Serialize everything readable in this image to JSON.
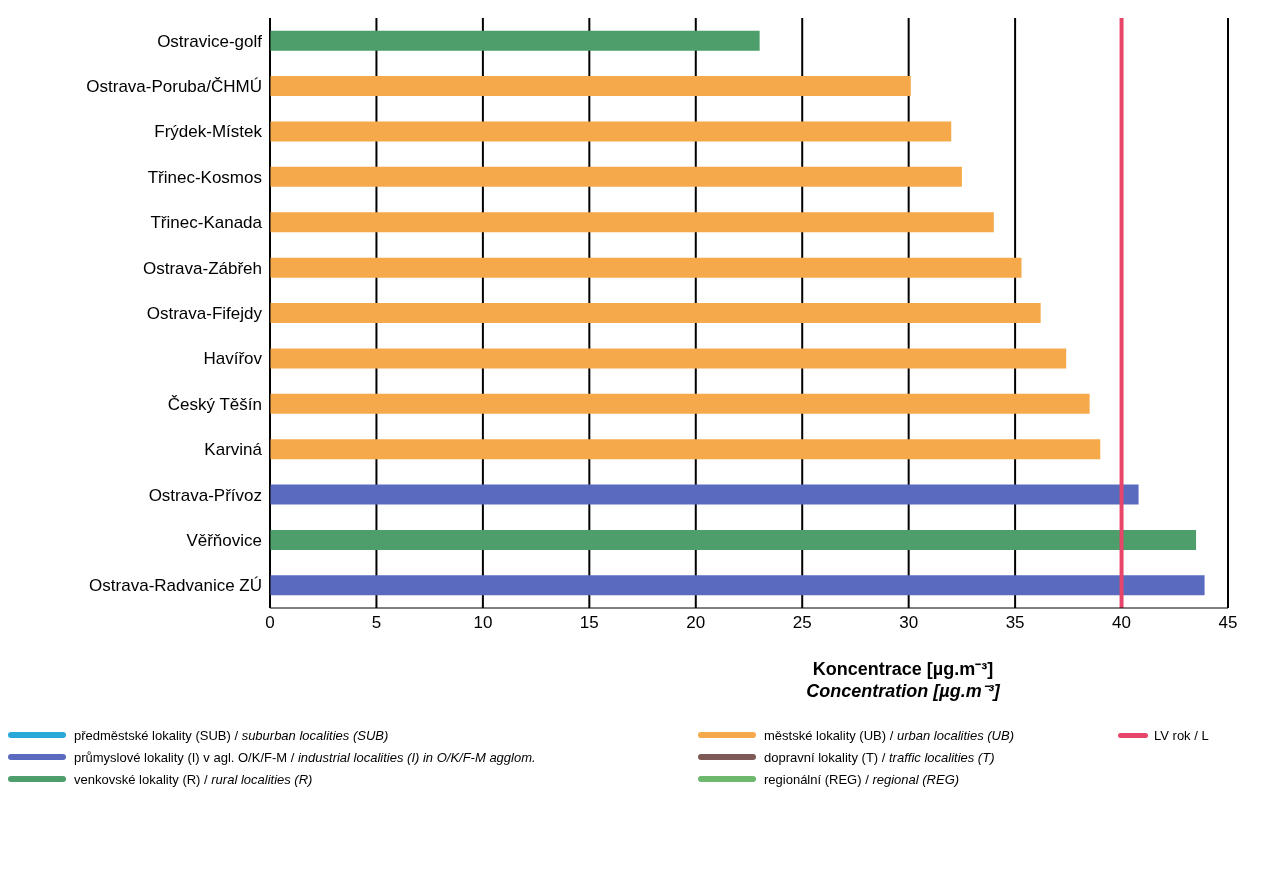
{
  "chart_data": {
    "type": "bar",
    "orientation": "horizontal",
    "stacked": true,
    "xlabel": "Koncentrace [µg.m⁻³]\nConcentration [µg.m⁻³]",
    "categories": [
      "Ostravice-golf",
      "Ostrava-Poruba/ČHMÚ",
      "Frýdek-Místek",
      "Třinec-Kosmos",
      "Třinec-Kanada",
      "Ostrava-Zábřeh",
      "Ostrava-Fifejdy",
      "Havířov",
      "Český Těšín",
      "Karviná",
      "Ostrava-Přívoz",
      "Věřňovice",
      "Ostrava-Radvanice ZÚ"
    ],
    "series": [
      {
        "name": "předměstské lokality (SUB) / suburban localities (SUB)",
        "color": "#2aa8d8",
        "values": [
          null,
          null,
          null,
          null,
          null,
          null,
          null,
          null,
          null,
          null,
          null,
          null,
          null
        ]
      },
      {
        "name": "průmyslové lokality (I) v agl. O/K/F-M / industrial localities (I) in O/K/F-M agglom.",
        "color": "#5a6bbf",
        "values": [
          null,
          null,
          null,
          null,
          null,
          null,
          null,
          null,
          null,
          null,
          40.8,
          null,
          43.9
        ]
      },
      {
        "name": "venkovské lokality (R) / rural localities (R)",
        "color": "#4d9e6a",
        "values": [
          23.0,
          null,
          null,
          null,
          null,
          null,
          null,
          null,
          null,
          null,
          null,
          43.5,
          null
        ]
      },
      {
        "name": "městské lokality (UB) / urban localities (UB)",
        "color": "#f5a94a",
        "values": [
          null,
          30.1,
          32.0,
          32.5,
          34.0,
          35.3,
          36.2,
          37.4,
          38.5,
          39.0,
          null,
          null,
          null
        ]
      },
      {
        "name": "dopravní lokality (T) / traffic localities (T)",
        "color": "#7d5a55",
        "values": [
          null,
          null,
          null,
          null,
          null,
          null,
          null,
          null,
          null,
          null,
          null,
          null,
          null
        ]
      },
      {
        "name": "regionální (REG) / regional (REG)",
        "color": "#6cb86c",
        "values": [
          null,
          null,
          null,
          null,
          null,
          null,
          null,
          null,
          null,
          null,
          null,
          null,
          null
        ]
      }
    ],
    "xlim": [
      0,
      45
    ],
    "xticks": [
      0,
      5,
      10,
      15,
      20,
      25,
      30,
      35,
      40,
      45
    ],
    "grid": "x",
    "legend": "bottom",
    "ref_lines": [
      {
        "axis": "x",
        "value": 40,
        "label": "LV rok / L",
        "color": "#e8456a"
      }
    ]
  }
}
